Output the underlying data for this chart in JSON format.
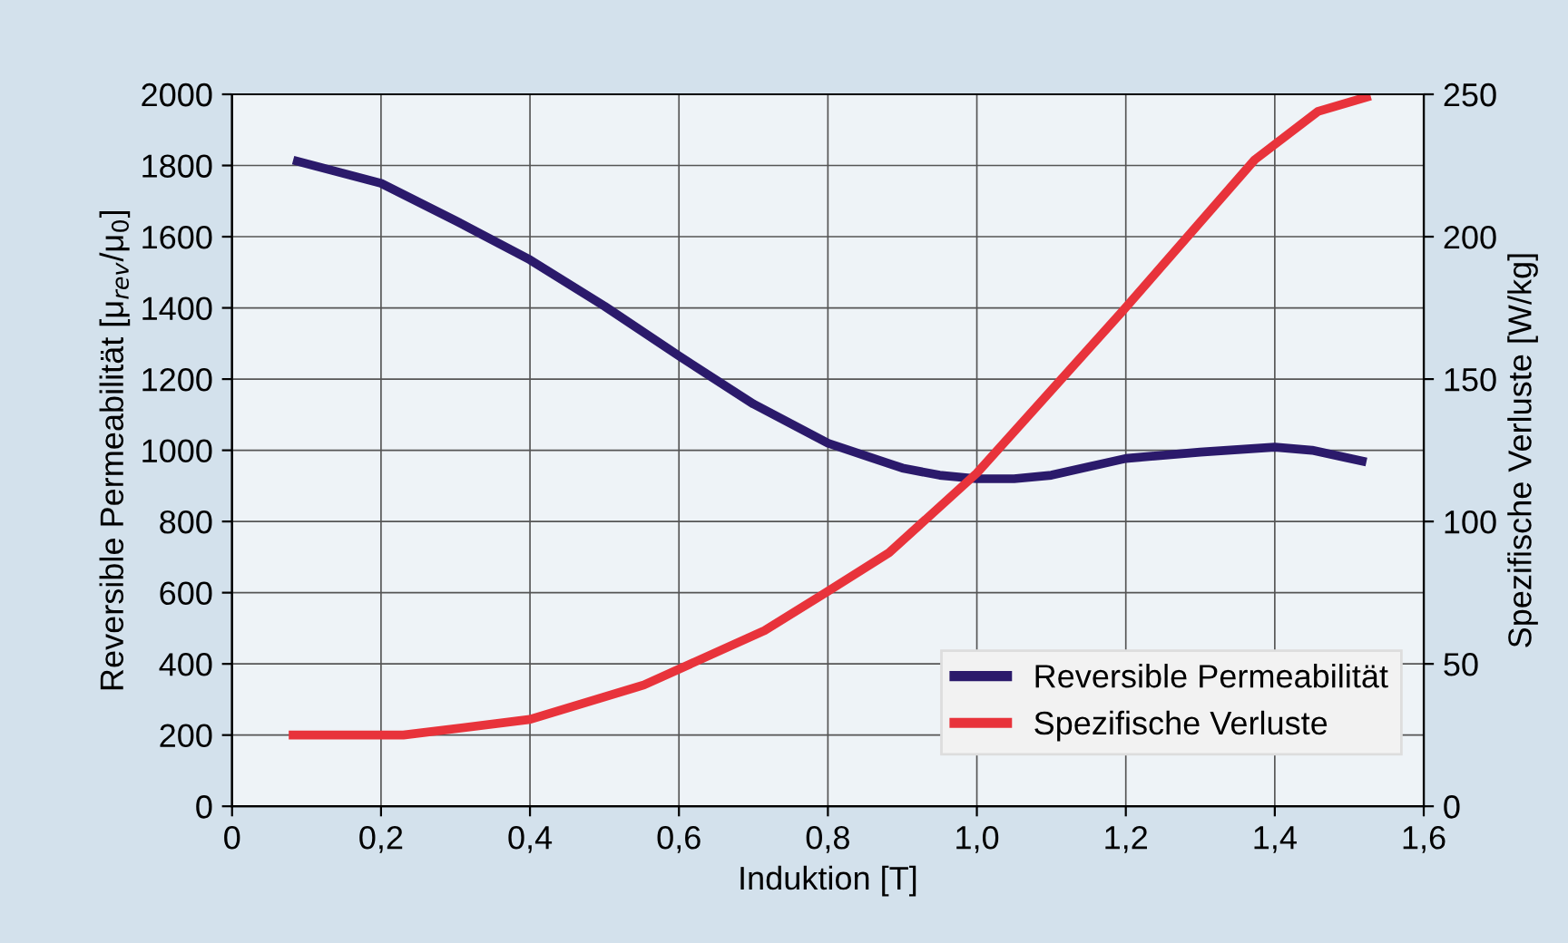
{
  "chart_data": {
    "type": "line",
    "xlabel": "Induktion [T]",
    "ylabel": "Reversible Permeabilität [μ$_{rev}$/μ$_{0}$]",
    "y2label": "Spezifische Verluste [W/kg]",
    "xlim": [
      0,
      1.6
    ],
    "xticks": [
      0,
      {
        "value": 0.2,
        "label": "0,2"
      },
      {
        "value": 0.4,
        "label": "0,4"
      },
      {
        "value": 0.6,
        "label": "0,6"
      },
      {
        "value": 0.8,
        "label": "0,8"
      },
      {
        "value": 1.0,
        "label": "1,0"
      },
      {
        "value": 1.2,
        "label": "1,2"
      },
      {
        "value": 1.4,
        "label": "1,4"
      },
      {
        "value": 1.6,
        "label": "1,6"
      }
    ],
    "ylim": [
      0,
      2000
    ],
    "yticks": [
      0,
      200,
      400,
      600,
      800,
      1000,
      1200,
      1400,
      1600,
      1800,
      2000
    ],
    "y2lim": [
      0,
      250
    ],
    "y2ticks": [
      0,
      50,
      100,
      150,
      200,
      250
    ],
    "grid": true,
    "legend": "bottom right",
    "line_style": "solid",
    "marker": "none",
    "series": [
      {
        "name": "Reversible Permeabilität",
        "color": "#2b1a6b",
        "x": [
          0.082,
          0.2,
          0.3,
          0.4,
          0.5,
          0.6,
          0.7,
          0.8,
          0.9,
          0.95,
          1.0,
          1.05,
          1.1,
          1.2,
          1.3,
          1.4,
          1.45,
          1.523
        ],
        "values": [
          1815,
          1750,
          1645,
          1535,
          1405,
          1265,
          1130,
          1020,
          950,
          930,
          920,
          920,
          930,
          977,
          995,
          1009,
          1000,
          967
        ]
      },
      {
        "name": "Spezifische Verluste",
        "color": "#e8333b",
        "axis": "y2",
        "x": [
          0.082,
          0.23,
          0.4,
          0.553,
          0.715,
          0.797,
          0.882,
          1.0,
          1.196,
          1.373,
          1.458,
          1.523
        ],
        "values": [
          25,
          25,
          30.5,
          42.6,
          61.7,
          75,
          89,
          117,
          174,
          227,
          244,
          249
        ]
      }
    ]
  }
}
